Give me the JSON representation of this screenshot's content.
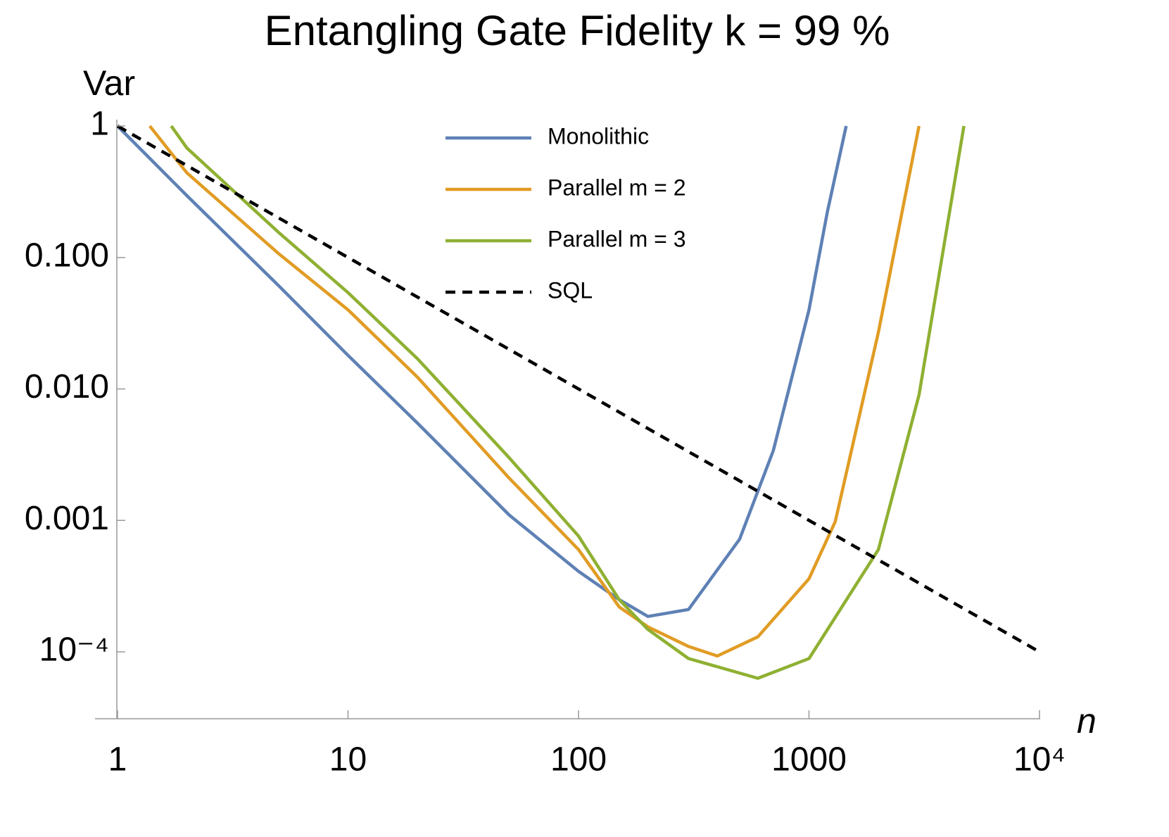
{
  "chart_data": {
    "type": "line",
    "title": "Entangling Gate Fidelity  k = 99 %",
    "x_label": "n",
    "y_label": "Var",
    "xscale": "log",
    "yscale": "log",
    "xlim": [
      0.83,
      10000
    ],
    "ylim": [
      3.1e-05,
      1
    ],
    "xticks": [
      1,
      10,
      100,
      1000,
      {
        "value": 10000,
        "label": "10⁴"
      }
    ],
    "yticks": [
      1,
      {
        "value": 0.1,
        "label": "0.100"
      },
      {
        "value": 0.01,
        "label": "0.010"
      },
      {
        "value": 0.001,
        "label": "0.001"
      },
      {
        "value": 0.0001,
        "label": "10⁻⁴"
      }
    ],
    "legend": "upper right",
    "series": [
      {
        "name": "Monolithic",
        "color": "#5e81b5",
        "style": "solid",
        "x": [
          1,
          2,
          5,
          10,
          20,
          50,
          100,
          150,
          200,
          300,
          500,
          700,
          1000,
          1200,
          1450
        ],
        "values": [
          1,
          0.295,
          0.061,
          0.018,
          0.0055,
          0.0011,
          0.00041,
          0.00025,
          0.000186,
          0.00021,
          0.00072,
          0.0034,
          0.04,
          0.22,
          1
        ]
      },
      {
        "name": "Parallel  m = 2",
        "color": "#e19c24",
        "style": "solid",
        "x": [
          1.38,
          2,
          5,
          10,
          20,
          50,
          100,
          150,
          200,
          300,
          400,
          600,
          1000,
          1300,
          2000,
          3000
        ],
        "values": [
          1,
          0.44,
          0.107,
          0.04,
          0.0123,
          0.0021,
          0.0006,
          0.00022,
          0.000155,
          0.00011,
          9.3e-05,
          0.00013,
          0.00036,
          0.00098,
          0.027,
          1
        ]
      },
      {
        "name": "Parallel  m = 3",
        "color": "#8fb032",
        "style": "solid",
        "x": [
          1.71,
          2,
          5,
          10,
          20,
          50,
          100,
          150,
          200,
          300,
          600,
          1000,
          2000,
          3000,
          4700
        ],
        "values": [
          1,
          0.68,
          0.155,
          0.054,
          0.017,
          0.003,
          0.00076,
          0.00025,
          0.000148,
          8.9e-05,
          6.3e-05,
          8.9e-05,
          0.0006,
          0.009,
          1
        ]
      },
      {
        "name": "SQL",
        "color": "#000000",
        "style": "dashed",
        "x": [
          1,
          10000
        ],
        "values": [
          1,
          0.0001
        ]
      }
    ]
  }
}
